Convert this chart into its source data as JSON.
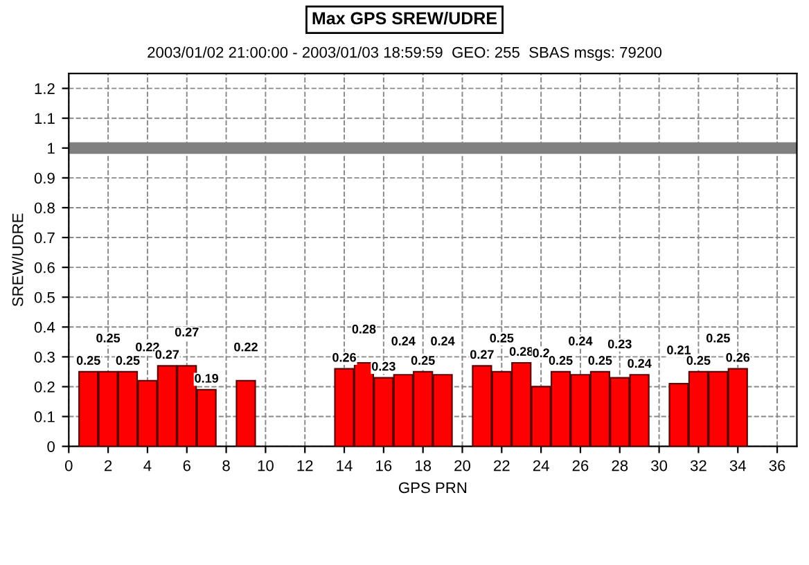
{
  "chart_data": {
    "type": "bar",
    "title": "Max GPS SREW/UDRE",
    "subtitle": "2003/01/02 21:00:00 - 2003/01/03 18:59:59  GEO: 255  SBAS msgs: 79200",
    "xlabel": "GPS PRN",
    "ylabel": "SREW/UDRE",
    "x": [
      1,
      2,
      3,
      4,
      5,
      6,
      7,
      9,
      14,
      15,
      16,
      17,
      18,
      19,
      21,
      22,
      23,
      24,
      25,
      26,
      27,
      28,
      29,
      31,
      32,
      33,
      34
    ],
    "values": [
      0.25,
      0.25,
      0.25,
      0.22,
      0.27,
      0.27,
      0.19,
      0.22,
      0.26,
      0.28,
      0.23,
      0.24,
      0.25,
      0.24,
      0.27,
      0.25,
      0.28,
      0.2,
      0.25,
      0.24,
      0.25,
      0.23,
      0.24,
      0.21,
      0.25,
      0.25,
      0.26
    ],
    "color": "#ff0000",
    "data_labels": true,
    "xlim": [
      0,
      37
    ],
    "xticks": [
      0,
      2,
      4,
      6,
      8,
      10,
      12,
      14,
      16,
      18,
      20,
      22,
      24,
      26,
      28,
      30,
      32,
      34,
      36
    ],
    "ylim": [
      0,
      1.25
    ],
    "yticks": [
      0,
      0.1,
      0.2,
      0.3,
      0.4,
      0.5,
      0.6,
      0.7,
      0.8,
      0.9,
      1,
      1.1,
      1.2
    ],
    "ref_lines": [
      {
        "axis": "y",
        "value": 1,
        "color": "#808080"
      }
    ],
    "grid": true
  }
}
